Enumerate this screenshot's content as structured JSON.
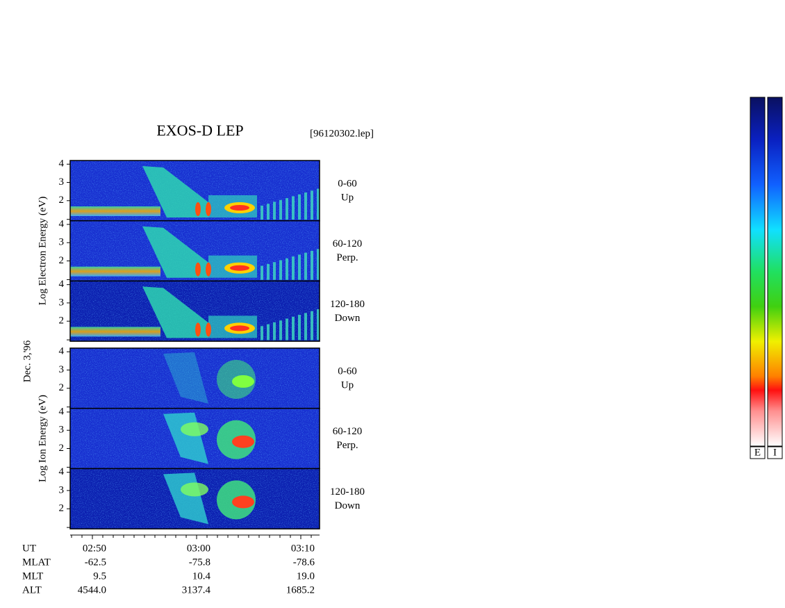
{
  "header": {
    "title": "EXOS-D LEP",
    "file": "[96120302.lep]",
    "date": "Dec. 3,'96"
  },
  "groups": [
    {
      "ylabel": "Log  Electron  Energy (eV)",
      "panels": [
        {
          "range": "0-60",
          "dir": "Up"
        },
        {
          "range": "60-120",
          "dir": "Perp."
        },
        {
          "range": "120-180",
          "dir": "Down"
        }
      ]
    },
    {
      "ylabel": "Log  Ion  Energy (eV)",
      "panels": [
        {
          "range": "0-60",
          "dir": "Up"
        },
        {
          "range": "60-120",
          "dir": "Perp."
        },
        {
          "range": "120-180",
          "dir": "Down"
        }
      ]
    }
  ],
  "ylim": [
    0.9,
    4.2
  ],
  "yticks": [
    4,
    3,
    2
  ],
  "rows": [
    {
      "label": "UT",
      "values": [
        "02:50",
        "03:00",
        "03:10"
      ]
    },
    {
      "label": "MLAT",
      "values": [
        "-62.5",
        "-75.8",
        "-78.6"
      ]
    },
    {
      "label": "MLT",
      "values": [
        "9.5",
        "10.4",
        "19.0"
      ]
    },
    {
      "label": "ALT",
      "values": [
        "4544.0",
        "3137.4",
        "1685.2"
      ]
    }
  ],
  "colorbars": [
    "E",
    "I"
  ]
}
